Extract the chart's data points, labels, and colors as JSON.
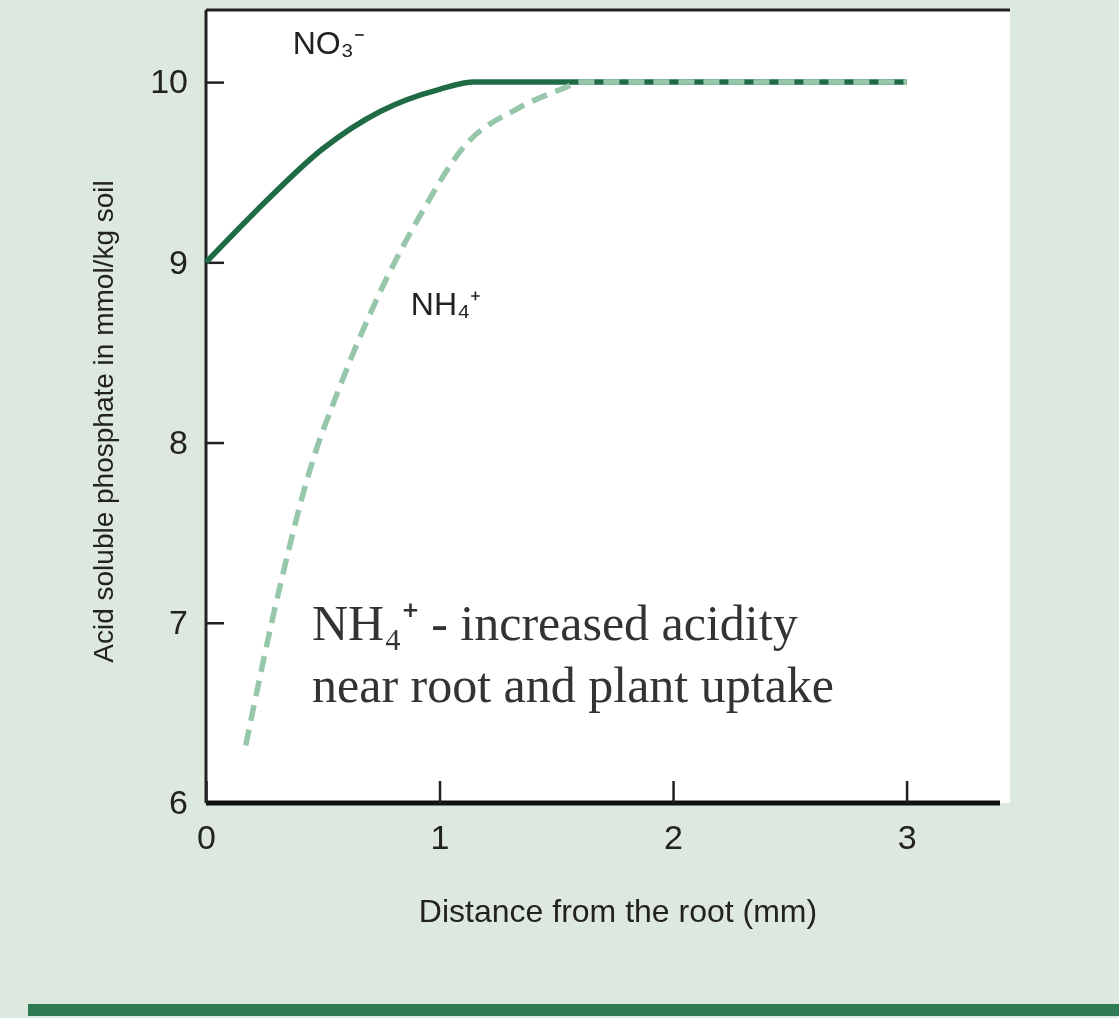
{
  "chart_data": {
    "type": "line",
    "xlabel": "Distance from the root (mm)",
    "ylabel": "Acid soluble phosphate in mmol/kg soil",
    "xlim": [
      0,
      3.4
    ],
    "ylim": [
      6,
      10.4
    ],
    "xticks": [
      0,
      1,
      2,
      3
    ],
    "yticks": [
      6,
      7,
      8,
      9,
      10
    ],
    "grid": false,
    "marker": "none",
    "series": [
      {
        "name": "NO₃⁻",
        "color": "#1f6b45",
        "line_style": "solid",
        "x": [
          0,
          0.25,
          0.5,
          0.75,
          1.0,
          1.15,
          1.6,
          3
        ],
        "values": [
          9,
          9.33,
          9.63,
          9.84,
          9.96,
          10,
          10,
          10
        ]
      },
      {
        "name": "NH₄⁺",
        "color": "#96c7ab",
        "line_style": "dashed",
        "x": [
          0.17,
          0.32,
          0.45,
          0.57,
          0.74,
          0.93,
          1.11,
          1.33,
          1.54,
          1.6,
          3
        ],
        "values": [
          6.32,
          7.22,
          7.87,
          8.3,
          8.82,
          9.29,
          9.65,
          9.85,
          9.97,
          10,
          10
        ]
      }
    ],
    "annotations": [
      "NH₄⁺ - increased acidity near root and plant uptake"
    ]
  }
}
